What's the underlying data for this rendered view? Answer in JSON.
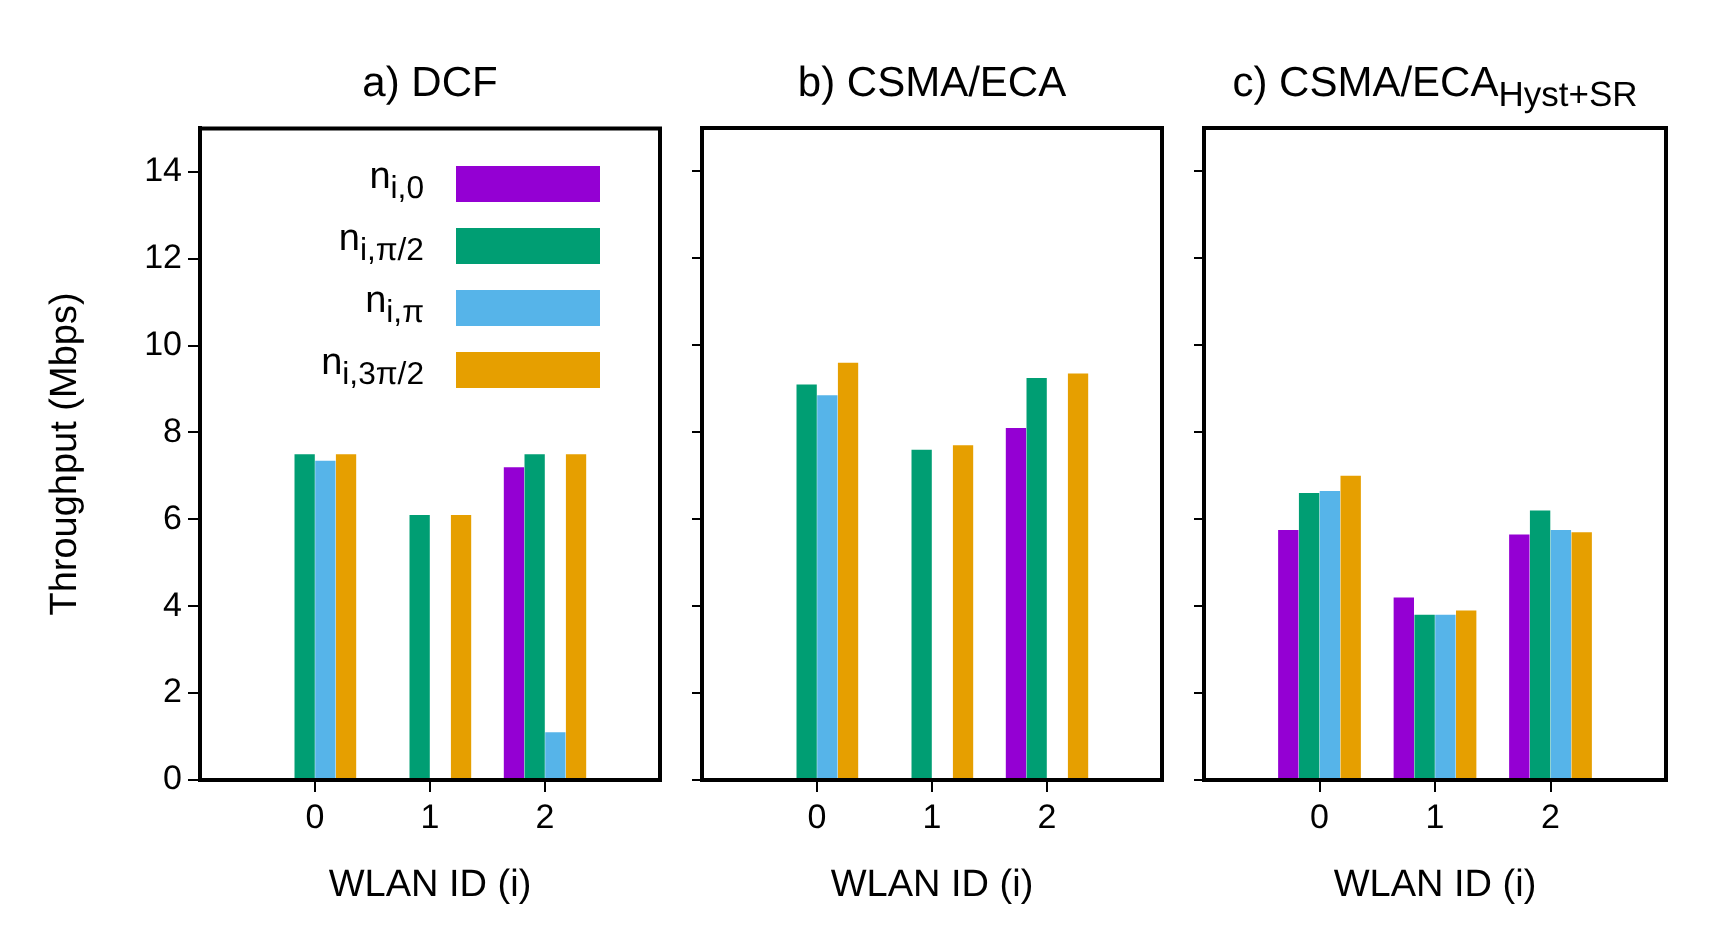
{
  "chart_data": [
    {
      "type": "bar",
      "title": "a) DCF",
      "xlabel": "WLAN ID (i)",
      "ylabel": "Throughput (Mbps)",
      "x": [
        0,
        1,
        2
      ],
      "xlim": [
        -1,
        3
      ],
      "xticks": [
        0,
        1,
        2
      ],
      "ylim": [
        0,
        15
      ],
      "yticks": [
        0,
        2,
        4,
        6,
        8,
        10,
        12,
        14
      ],
      "grid": false,
      "legend": "top right",
      "series": [
        {
          "name": "n$_{i,0}$",
          "color": "#9400d3",
          "values": [
            0,
            0,
            7.2
          ]
        },
        {
          "name": "n$_{i,π/2}$",
          "color": "#009e73",
          "values": [
            7.5,
            6.1,
            7.5
          ]
        },
        {
          "name": "n$_{i,π}$",
          "color": "#56b4e9",
          "values": [
            7.35,
            0,
            1.1
          ]
        },
        {
          "name": "n$_{i,3π/2}$",
          "color": "#e69f00",
          "values": [
            7.5,
            6.1,
            7.5
          ]
        }
      ]
    },
    {
      "type": "bar",
      "title": "b) CSMA/ECA",
      "xlabel": "WLAN ID (i)",
      "x": [
        0,
        1,
        2
      ],
      "xlim": [
        -1,
        3
      ],
      "xticks": [
        0,
        1,
        2
      ],
      "ylim": [
        0,
        15
      ],
      "yticks": [
        0,
        2,
        4,
        6,
        8,
        10,
        12,
        14
      ],
      "grid": false,
      "tick_labels": "x",
      "series": [
        {
          "color": "#9400d3",
          "values": [
            0,
            0,
            8.1
          ]
        },
        {
          "color": "#009e73",
          "values": [
            9.1,
            7.6,
            9.25
          ]
        },
        {
          "color": "#56b4e9",
          "values": [
            8.85,
            0,
            0
          ]
        },
        {
          "color": "#e69f00",
          "values": [
            9.6,
            7.7,
            9.35
          ]
        }
      ]
    },
    {
      "type": "bar",
      "title": "c) CSMA/ECA$_{Hyst+SR}$",
      "xlabel": "WLAN ID (i)",
      "x": [
        0,
        1,
        2
      ],
      "xlim": [
        -1,
        3
      ],
      "xticks": [
        0,
        1,
        2
      ],
      "ylim": [
        0,
        15
      ],
      "yticks": [
        0,
        2,
        4,
        6,
        8,
        10,
        12,
        14
      ],
      "grid": false,
      "tick_labels": "x",
      "series": [
        {
          "color": "#9400d3",
          "values": [
            5.75,
            4.2,
            5.65
          ]
        },
        {
          "color": "#009e73",
          "values": [
            6.6,
            3.8,
            6.2
          ]
        },
        {
          "color": "#56b4e9",
          "values": [
            6.65,
            3.8,
            5.75
          ]
        },
        {
          "color": "#e69f00",
          "values": [
            7.0,
            3.9,
            5.7
          ]
        }
      ]
    }
  ]
}
